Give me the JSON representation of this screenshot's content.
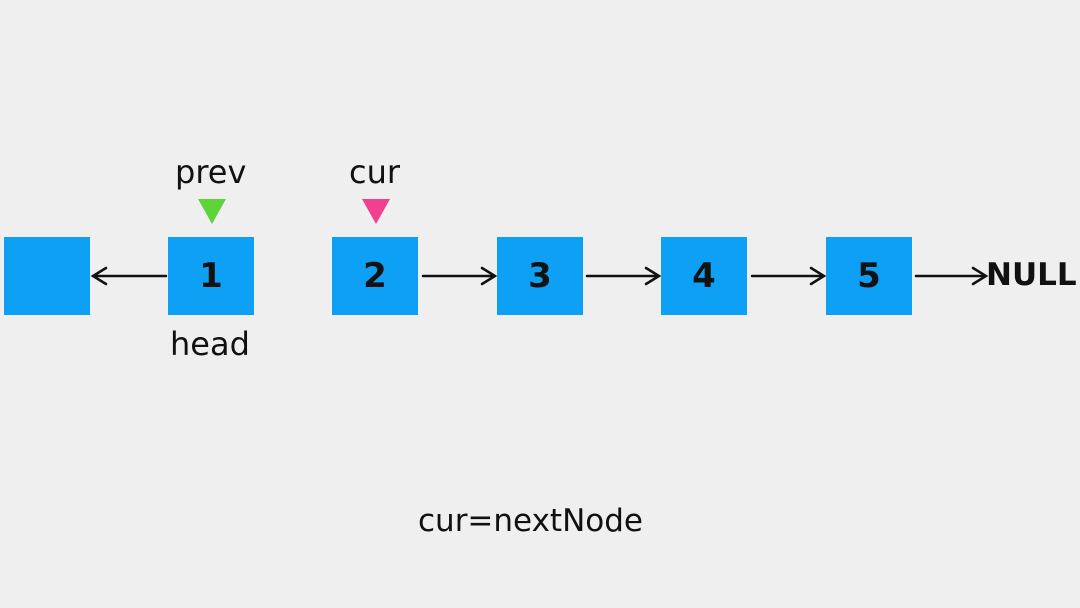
{
  "diagram": {
    "nodes": [
      {
        "value": ""
      },
      {
        "value": "1"
      },
      {
        "value": "2"
      },
      {
        "value": "3"
      },
      {
        "value": "4"
      },
      {
        "value": "5"
      }
    ],
    "pointers": {
      "prev": "prev",
      "cur": "cur",
      "head": "head"
    },
    "terminal": "NULL",
    "caption": "cur=nextNode",
    "colors": {
      "background": "#efefef",
      "node_fill": "#0ea0f5",
      "prev_marker": "#5fd33a",
      "cur_marker": "#f23f8e",
      "text": "#111111"
    }
  }
}
